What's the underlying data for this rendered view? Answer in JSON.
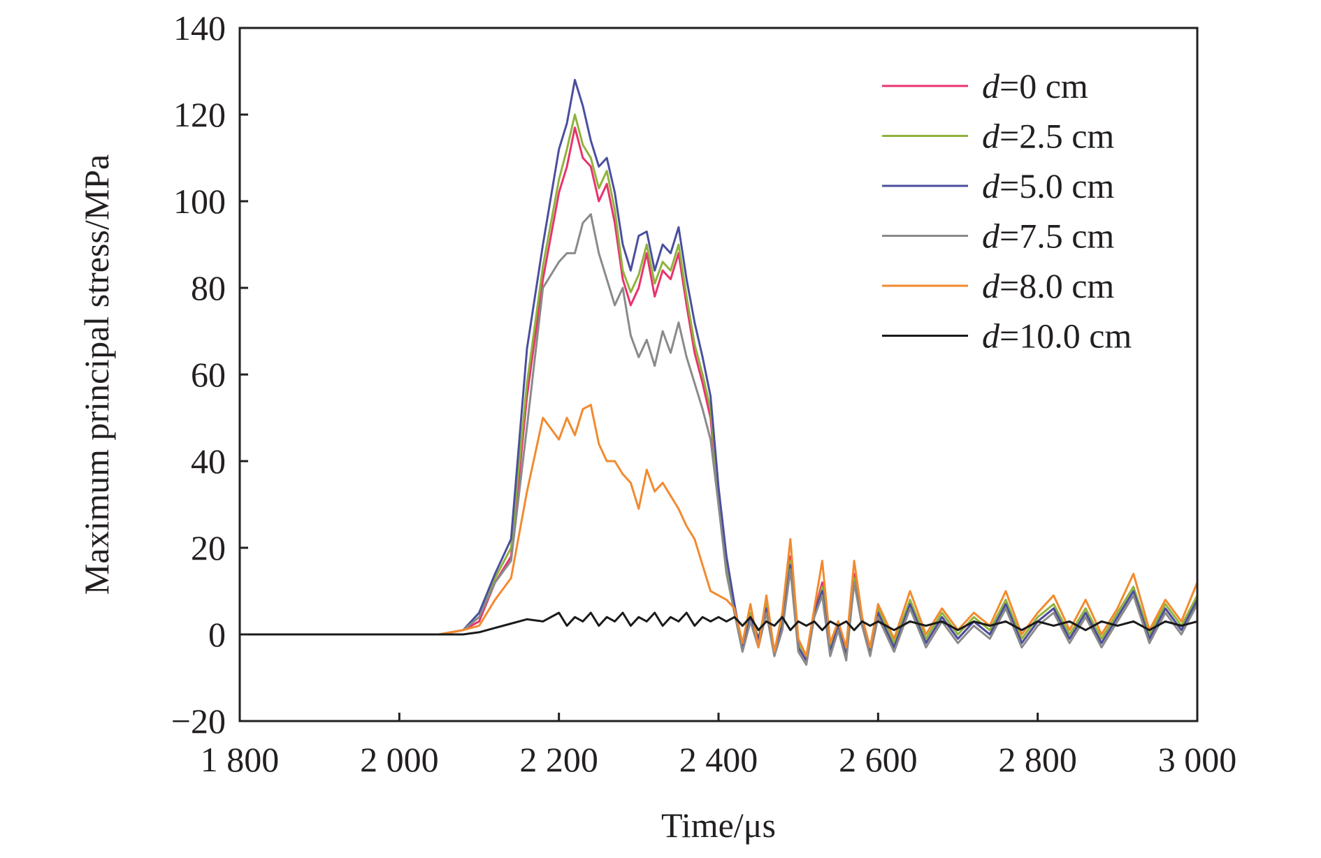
{
  "chart_data": {
    "type": "line",
    "title": "",
    "xlabel": "Time/μs",
    "ylabel": "Maximum principal stress/MPa",
    "xlim": [
      1800,
      3000
    ],
    "ylim": [
      -20,
      140
    ],
    "xticks": [
      1800,
      2000,
      2200,
      2400,
      2600,
      2800,
      3000
    ],
    "xtick_labels": [
      "1 800",
      "2 000",
      "2 200",
      "2 400",
      "2 600",
      "2 800",
      "3 000"
    ],
    "yticks": [
      -20,
      0,
      20,
      40,
      60,
      80,
      100,
      120,
      140
    ],
    "ytick_labels": [
      "−20",
      "0",
      "20",
      "40",
      "60",
      "80",
      "100",
      "120",
      "140"
    ],
    "grid": false,
    "legend_position": "top-right",
    "colors": {
      "axis": "#231f20",
      "background": "#ffffff"
    },
    "series": [
      {
        "label_var": "d",
        "label_rest": "=0 cm",
        "color": "#e8336d",
        "x": [
          1800,
          2050,
          2080,
          2100,
          2120,
          2140,
          2160,
          2180,
          2200,
          2210,
          2220,
          2230,
          2240,
          2250,
          2260,
          2270,
          2280,
          2290,
          2300,
          2310,
          2320,
          2330,
          2340,
          2350,
          2360,
          2370,
          2380,
          2390,
          2400,
          2410,
          2420,
          2430,
          2440,
          2450,
          2460,
          2470,
          2480,
          2490,
          2500,
          2510,
          2520,
          2530,
          2540,
          2550,
          2560,
          2570,
          2580,
          2590,
          2600,
          2620,
          2640,
          2660,
          2680,
          2700,
          2720,
          2740,
          2760,
          2780,
          2800,
          2820,
          2840,
          2860,
          2880,
          2900,
          2920,
          2940,
          2960,
          2980,
          3000
        ],
        "y": [
          0,
          0,
          1,
          3,
          12,
          18,
          55,
          82,
          102,
          108,
          117,
          110,
          108,
          100,
          104,
          95,
          82,
          76,
          80,
          88,
          78,
          84,
          82,
          88,
          76,
          65,
          58,
          50,
          30,
          15,
          5,
          -3,
          4,
          -2,
          6,
          -4,
          2,
          18,
          -3,
          -6,
          5,
          12,
          -4,
          2,
          -5,
          14,
          3,
          -4,
          5,
          -3,
          7,
          -2,
          4,
          -1,
          3,
          0,
          7,
          -2,
          3,
          6,
          -1,
          5,
          -2,
          4,
          10,
          -1,
          6,
          1,
          8
        ]
      },
      {
        "label_var": "d",
        "label_rest": "=2.5 cm",
        "color": "#8fb33b",
        "x": [
          1800,
          2050,
          2080,
          2100,
          2120,
          2140,
          2160,
          2180,
          2200,
          2210,
          2220,
          2230,
          2240,
          2250,
          2260,
          2270,
          2280,
          2290,
          2300,
          2310,
          2320,
          2330,
          2340,
          2350,
          2360,
          2370,
          2380,
          2390,
          2400,
          2410,
          2420,
          2430,
          2440,
          2450,
          2460,
          2470,
          2480,
          2490,
          2500,
          2510,
          2520,
          2530,
          2540,
          2550,
          2560,
          2570,
          2580,
          2590,
          2600,
          2620,
          2640,
          2660,
          2680,
          2700,
          2720,
          2740,
          2760,
          2780,
          2800,
          2820,
          2840,
          2860,
          2880,
          2900,
          2920,
          2940,
          2960,
          2980,
          3000
        ],
        "y": [
          0,
          0,
          1,
          4,
          13,
          20,
          58,
          85,
          105,
          112,
          120,
          113,
          110,
          103,
          107,
          98,
          84,
          79,
          83,
          90,
          81,
          86,
          84,
          90,
          78,
          67,
          60,
          52,
          32,
          16,
          6,
          -2,
          5,
          -1,
          7,
          -5,
          3,
          17,
          -2,
          -5,
          4,
          11,
          -3,
          3,
          -4,
          13,
          2,
          -3,
          6,
          -2,
          8,
          -1,
          5,
          0,
          4,
          1,
          8,
          -1,
          4,
          7,
          0,
          6,
          -1,
          5,
          11,
          0,
          7,
          2,
          9
        ]
      },
      {
        "label_var": "d",
        "label_rest": "=5.0 cm",
        "color": "#4a4f9e",
        "x": [
          1800,
          2050,
          2080,
          2100,
          2120,
          2140,
          2160,
          2180,
          2200,
          2210,
          2220,
          2230,
          2240,
          2250,
          2260,
          2270,
          2280,
          2290,
          2300,
          2310,
          2320,
          2330,
          2340,
          2350,
          2360,
          2370,
          2380,
          2390,
          2400,
          2410,
          2420,
          2430,
          2440,
          2450,
          2460,
          2470,
          2480,
          2490,
          2500,
          2510,
          2520,
          2530,
          2540,
          2550,
          2560,
          2570,
          2580,
          2590,
          2600,
          2620,
          2640,
          2660,
          2680,
          2700,
          2720,
          2740,
          2760,
          2780,
          2800,
          2820,
          2840,
          2860,
          2880,
          2900,
          2920,
          2940,
          2960,
          2980,
          3000
        ],
        "y": [
          0,
          0,
          1,
          5,
          14,
          22,
          66,
          90,
          112,
          118,
          128,
          122,
          114,
          108,
          110,
          102,
          90,
          84,
          92,
          93,
          84,
          90,
          88,
          94,
          82,
          72,
          64,
          55,
          34,
          18,
          7,
          -3,
          4,
          -1,
          6,
          -4,
          2,
          16,
          -3,
          -6,
          5,
          10,
          -4,
          2,
          -5,
          12,
          3,
          -4,
          5,
          -3,
          7,
          -2,
          4,
          -1,
          3,
          0,
          7,
          -2,
          3,
          6,
          -1,
          5,
          -2,
          4,
          10,
          -1,
          6,
          1,
          8
        ]
      },
      {
        "label_var": "d",
        "label_rest": "=7.5 cm",
        "color": "#8a8a8a",
        "x": [
          1800,
          2050,
          2080,
          2100,
          2120,
          2140,
          2160,
          2180,
          2200,
          2210,
          2220,
          2230,
          2240,
          2250,
          2260,
          2270,
          2280,
          2290,
          2300,
          2310,
          2320,
          2330,
          2340,
          2350,
          2360,
          2370,
          2380,
          2390,
          2400,
          2410,
          2420,
          2430,
          2440,
          2450,
          2460,
          2470,
          2480,
          2490,
          2500,
          2510,
          2520,
          2530,
          2540,
          2550,
          2560,
          2570,
          2580,
          2590,
          2600,
          2620,
          2640,
          2660,
          2680,
          2700,
          2720,
          2740,
          2760,
          2780,
          2800,
          2820,
          2840,
          2860,
          2880,
          2900,
          2920,
          2940,
          2960,
          2980,
          3000
        ],
        "y": [
          0,
          0,
          1,
          4,
          12,
          17,
          48,
          80,
          86,
          88,
          88,
          95,
          97,
          88,
          82,
          76,
          80,
          69,
          64,
          68,
          62,
          70,
          65,
          72,
          64,
          58,
          52,
          45,
          30,
          14,
          5,
          -4,
          3,
          -3,
          5,
          -5,
          1,
          15,
          -4,
          -7,
          4,
          9,
          -5,
          1,
          -6,
          12,
          2,
          -5,
          4,
          -4,
          6,
          -3,
          3,
          -2,
          2,
          -1,
          6,
          -3,
          2,
          5,
          -2,
          4,
          -3,
          3,
          9,
          -2,
          5,
          0,
          7
        ]
      },
      {
        "label_var": "d",
        "label_rest": "=8.0 cm",
        "color": "#f28a2f",
        "x": [
          1800,
          2050,
          2080,
          2100,
          2120,
          2140,
          2160,
          2180,
          2200,
          2210,
          2220,
          2230,
          2240,
          2250,
          2260,
          2270,
          2280,
          2290,
          2300,
          2310,
          2320,
          2330,
          2340,
          2350,
          2360,
          2370,
          2380,
          2390,
          2400,
          2410,
          2420,
          2430,
          2440,
          2450,
          2460,
          2470,
          2480,
          2490,
          2500,
          2510,
          2520,
          2530,
          2540,
          2550,
          2560,
          2570,
          2580,
          2590,
          2600,
          2620,
          2640,
          2660,
          2680,
          2700,
          2720,
          2740,
          2760,
          2780,
          2800,
          2820,
          2840,
          2860,
          2880,
          2900,
          2920,
          2940,
          2960,
          2980,
          3000
        ],
        "y": [
          0,
          0,
          1,
          2,
          8,
          13,
          33,
          50,
          45,
          50,
          46,
          52,
          53,
          44,
          40,
          40,
          37,
          35,
          29,
          38,
          33,
          35,
          32,
          29,
          25,
          22,
          16,
          10,
          9,
          8,
          6,
          -2,
          7,
          -3,
          9,
          -4,
          5,
          22,
          -1,
          -5,
          6,
          17,
          -2,
          3,
          -3,
          17,
          4,
          -3,
          7,
          -1,
          10,
          0,
          6,
          1,
          5,
          2,
          10,
          0,
          5,
          9,
          1,
          8,
          0,
          6,
          14,
          1,
          8,
          3,
          12
        ]
      },
      {
        "label_var": "d",
        "label_rest": "=10.0 cm",
        "color": "#1a1a1a",
        "x": [
          1800,
          2050,
          2080,
          2100,
          2120,
          2140,
          2160,
          2180,
          2200,
          2210,
          2220,
          2230,
          2240,
          2250,
          2260,
          2270,
          2280,
          2290,
          2300,
          2310,
          2320,
          2330,
          2340,
          2350,
          2360,
          2370,
          2380,
          2390,
          2400,
          2410,
          2420,
          2430,
          2440,
          2450,
          2460,
          2470,
          2480,
          2490,
          2500,
          2510,
          2520,
          2530,
          2540,
          2550,
          2560,
          2570,
          2580,
          2590,
          2600,
          2620,
          2640,
          2660,
          2680,
          2700,
          2720,
          2740,
          2760,
          2780,
          2800,
          2820,
          2840,
          2860,
          2880,
          2900,
          2920,
          2940,
          2960,
          2980,
          3000
        ],
        "y": [
          0,
          0,
          0,
          0.5,
          1.5,
          2.5,
          3.5,
          3,
          5,
          2,
          4,
          3,
          5,
          2,
          4,
          3,
          5,
          2,
          4,
          3,
          5,
          2,
          4,
          3,
          5,
          2,
          4,
          3,
          4,
          3,
          4,
          2,
          4,
          1,
          3,
          2,
          4,
          1,
          3,
          2,
          3,
          1,
          3,
          2,
          3,
          1,
          3,
          2,
          3,
          1,
          3,
          2,
          3,
          1,
          3,
          2,
          3,
          1,
          3,
          2,
          3,
          1,
          3,
          2,
          3,
          1,
          3,
          2,
          3
        ]
      }
    ]
  }
}
